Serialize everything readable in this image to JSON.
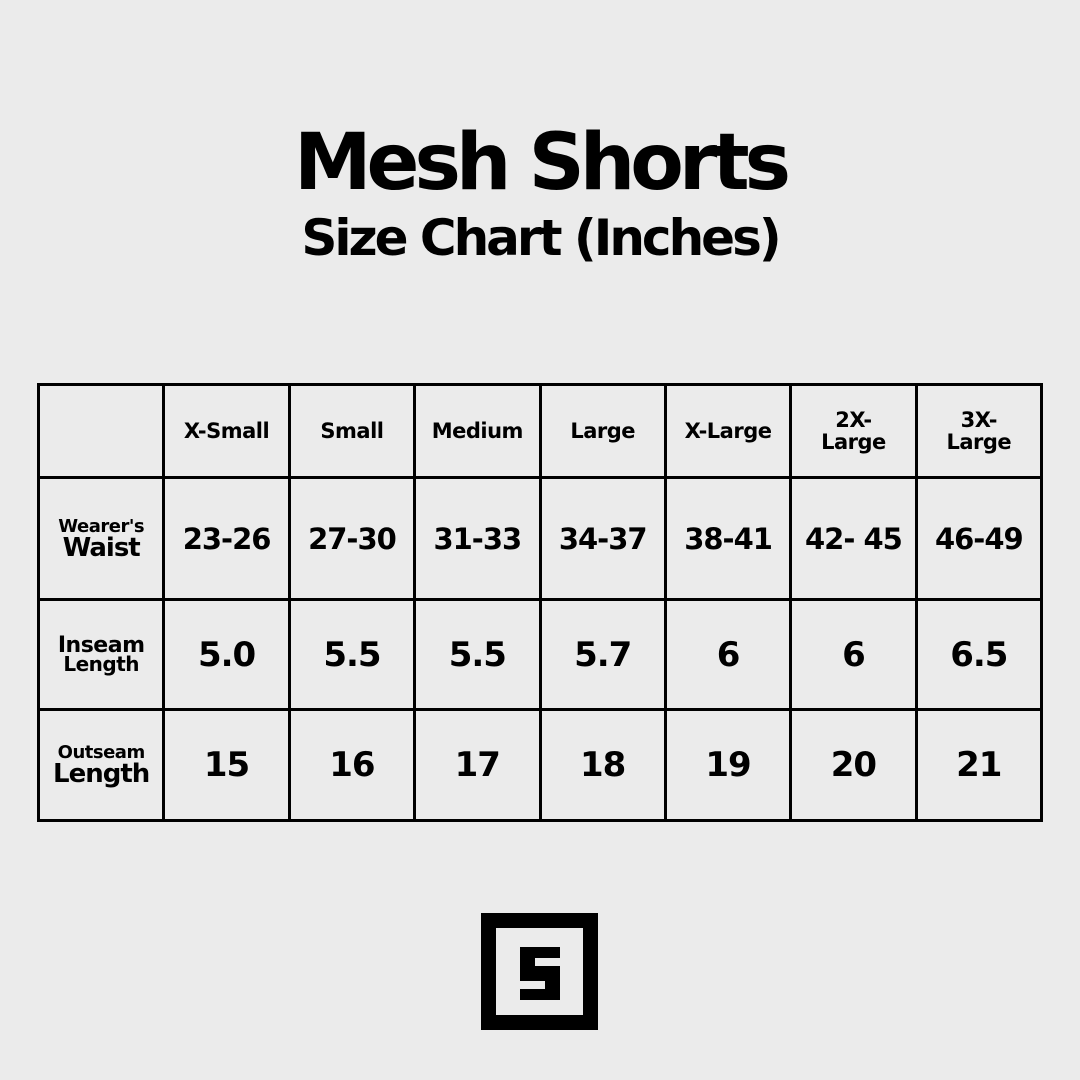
{
  "title": "Mesh Shorts",
  "subtitle": "Size Chart (Inches)",
  "table": {
    "columns": [
      "X-Small",
      "Small",
      "Medium",
      "Large",
      "X-Large",
      "2X-Large",
      "3X-Large"
    ],
    "rows": [
      {
        "label_top": "Wearer's",
        "label_bottom": "Waist",
        "values": [
          "23-26",
          "27-30",
          "31-33",
          "34-37",
          "38-41",
          "42- 45",
          "46-49"
        ]
      },
      {
        "label_top": "Inseam",
        "label_bottom": "Length",
        "values": [
          "5.0",
          "5.5",
          "5.5",
          "5.7",
          "6",
          "6",
          "6.5"
        ]
      },
      {
        "label_top": "Outseam",
        "label_bottom": "Length",
        "values": [
          "15",
          "16",
          "17",
          "18",
          "19",
          "20",
          "21"
        ]
      }
    ]
  },
  "logo": {
    "letter": "S",
    "icon": "square-s-logo"
  }
}
